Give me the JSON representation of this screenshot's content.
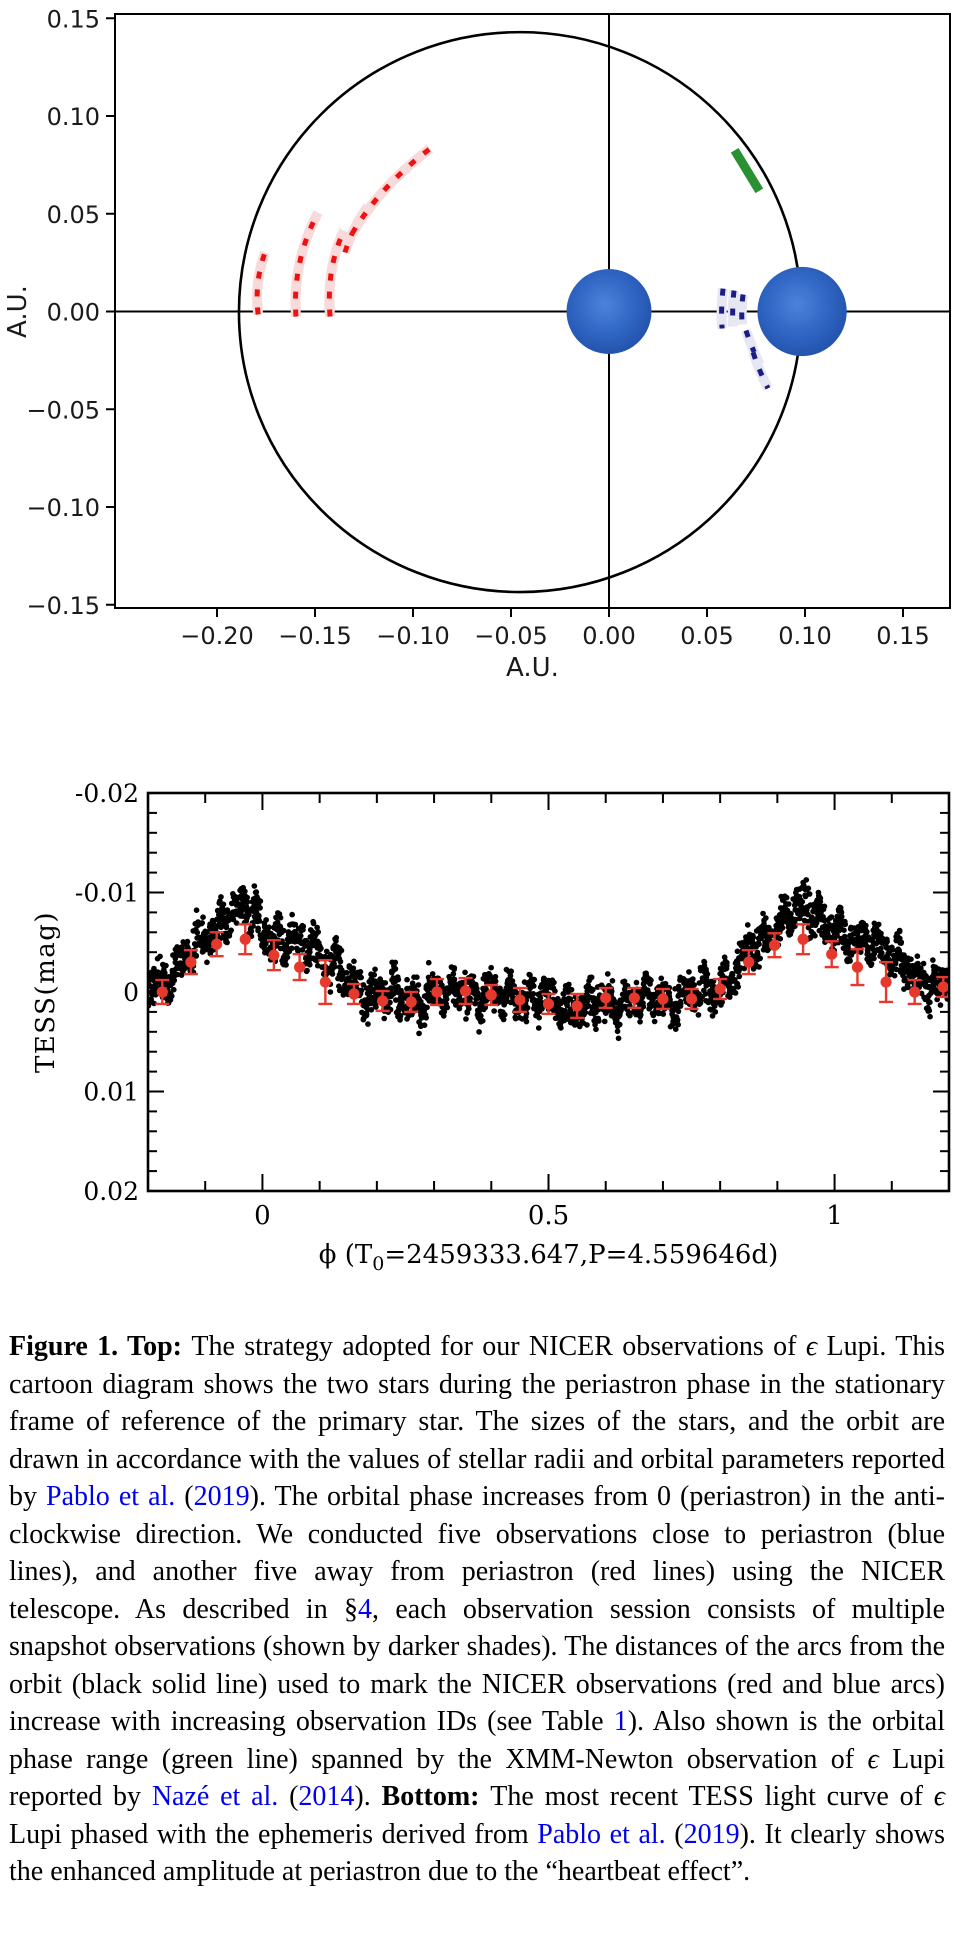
{
  "colors": {
    "link": "#0000EE",
    "frame": "#000000",
    "orbit": "#000000",
    "star_center": "#4e82da",
    "star_mid": "#3066c4",
    "star_edge": "#2151aa",
    "red_arc": "#ee1111",
    "red_band": "#f9dada",
    "blue_arc": "#1c1c87",
    "blue_band": "#e7e7f3",
    "green_segment": "#2a9132",
    "binned_point": "#e6392e",
    "scatter": "#000000"
  },
  "chart_data": [
    {
      "type": "scatter",
      "title": "NICER observation strategy cartoon: two stars of eps Lupi at periastron in primary rest frame",
      "xlabel": "A.U.",
      "ylabel": "A.U.",
      "xlim": [
        -0.2525,
        0.174
      ],
      "ylim": [
        -0.1522,
        0.1522
      ],
      "grid": false,
      "xticks": [
        -0.2,
        -0.15,
        -0.1,
        -0.05,
        0.0,
        0.05,
        0.1,
        0.15
      ],
      "xtick_labels": [
        "−0.20",
        "−0.15",
        "−0.10",
        "−0.05",
        "0.00",
        "0.05",
        "0.10",
        "0.15"
      ],
      "yticks": [
        0.15,
        0.1,
        0.05,
        0.0,
        -0.05,
        -0.1,
        -0.15
      ],
      "ytick_labels": [
        "0.15",
        "0.10",
        "0.05",
        "0.00",
        "−0.05",
        "−0.10",
        "−0.15"
      ],
      "axes_cross": [
        0,
        0
      ],
      "orbit_ellipse": {
        "cx": -0.0454,
        "cy": -0.0003,
        "rx": 0.1434,
        "ry": 0.1432
      },
      "stars": [
        {
          "name": "primary",
          "x": 0.0,
          "y": 0.0,
          "r": 0.0217
        },
        {
          "name": "secondary-at-periastron",
          "x": 0.0985,
          "y": 0.0,
          "r": 0.0228
        }
      ],
      "green_segment": {
        "x1": 0.0653,
        "y1": 0.0805,
        "x2": 0.0755,
        "y2": 0.0637,
        "meaning": "XMM-Newton observation phase range (Naze et al. 2014)"
      },
      "red_arcs": [
        [
          [
            -0.179,
            -0.0015
          ],
          [
            -0.181,
            0.0148
          ],
          [
            -0.1755,
            0.0302
          ]
        ],
        [
          [
            -0.1597,
            -0.0026
          ],
          [
            -0.1617,
            0.0251
          ],
          [
            -0.1485,
            0.0506
          ]
        ],
        [
          [
            -0.1423,
            -0.0026
          ],
          [
            -0.1444,
            0.022
          ],
          [
            -0.1352,
            0.0414
          ]
        ],
        [
          [
            -0.1347,
            0.0302
          ],
          [
            -0.1311,
            0.0424
          ],
          [
            -0.123,
            0.0537
          ]
        ],
        [
          [
            -0.1311,
            0.0398
          ],
          [
            -0.1168,
            0.064
          ],
          [
            -0.0913,
            0.0833
          ]
        ]
      ],
      "blue_arcs": [
        [
          [
            0.0582,
            0.0117
          ],
          [
            0.057,
            0.0015
          ],
          [
            0.0577,
            -0.0087
          ]
        ],
        [
          [
            0.0638,
            0.0107
          ],
          [
            0.0627,
            0.0015
          ],
          [
            0.0633,
            -0.0077
          ]
        ],
        [
          [
            0.0684,
            0.0087
          ],
          [
            0.0674,
            0.0011
          ],
          [
            0.0679,
            -0.0066
          ]
        ],
        [
          [
            0.0699,
            -0.0097
          ],
          [
            0.0727,
            -0.0184
          ],
          [
            0.077,
            -0.0271
          ]
        ],
        [
          [
            0.0735,
            -0.0209
          ],
          [
            0.0765,
            -0.0301
          ],
          [
            0.0811,
            -0.0393
          ]
        ]
      ]
    },
    {
      "type": "scatter",
      "title": "TESS light curve of eps Lupi phased on Pablo et al. (2019) ephemeris (heartbeat effect)",
      "ylabel": "TESS(mag)",
      "xlabel_parts": {
        "prefix": "ϕ (T",
        "sub": "0",
        "suffix": "=2459333.647,P=4.559646d)"
      },
      "xlim": [
        -0.2,
        1.2
      ],
      "ylim": [
        -0.02,
        0.02
      ],
      "y_axis_inverted": true,
      "xticks": [
        0,
        0.5,
        1
      ],
      "xtick_labels": [
        "0",
        "0.5",
        "1"
      ],
      "x_minor_step": 0.1,
      "yticks": [
        -0.02,
        -0.01,
        0,
        0.01,
        0.02
      ],
      "ytick_labels": [
        "-0.02",
        "-0.01",
        "0",
        "0.01",
        "0.02"
      ],
      "y_minor_step": 0.002,
      "band_halfwidth": 0.00145,
      "band_centerline": [
        [
          -0.2,
          -0.0008
        ],
        [
          -0.17,
          -0.0012
        ],
        [
          -0.14,
          -0.0028
        ],
        [
          -0.11,
          -0.0048
        ],
        [
          -0.08,
          -0.0066
        ],
        [
          -0.06,
          -0.0078
        ],
        [
          -0.04,
          -0.0084
        ],
        [
          -0.02,
          -0.008
        ],
        [
          0.0,
          -0.0066
        ],
        [
          0.02,
          -0.0052
        ],
        [
          0.045,
          -0.0044
        ],
        [
          0.07,
          -0.005
        ],
        [
          0.09,
          -0.0046
        ],
        [
          0.11,
          -0.0036
        ],
        [
          0.13,
          -0.0022
        ],
        [
          0.15,
          -0.001
        ],
        [
          0.17,
          -0.0003
        ],
        [
          0.2,
          0.0002
        ],
        [
          0.23,
          0.0006
        ],
        [
          0.26,
          0.0008
        ],
        [
          0.29,
          0.0002
        ],
        [
          0.32,
          0.0004
        ],
        [
          0.35,
          -0.0004
        ],
        [
          0.38,
          0.0002
        ],
        [
          0.41,
          0.0004
        ],
        [
          0.44,
          0.0002
        ],
        [
          0.47,
          0.0008
        ],
        [
          0.5,
          0.001
        ],
        [
          0.53,
          0.0013
        ],
        [
          0.56,
          0.0012
        ],
        [
          0.59,
          0.0014
        ],
        [
          0.62,
          0.001
        ],
        [
          0.65,
          0.0008
        ],
        [
          0.68,
          0.0008
        ],
        [
          0.71,
          0.0006
        ],
        [
          0.74,
          0.0006
        ],
        [
          0.77,
          0.0001
        ],
        [
          0.8,
          -0.0008
        ],
        [
          0.83,
          -0.0024
        ],
        [
          0.86,
          -0.0044
        ],
        [
          0.89,
          -0.0064
        ],
        [
          0.92,
          -0.0078
        ],
        [
          0.945,
          -0.0084
        ],
        [
          0.97,
          -0.008
        ],
        [
          1.0,
          -0.0062
        ],
        [
          1.03,
          -0.0048
        ],
        [
          1.06,
          -0.0052
        ],
        [
          1.09,
          -0.0042
        ],
        [
          1.12,
          -0.0026
        ],
        [
          1.15,
          -0.0012
        ],
        [
          1.18,
          -0.0006
        ],
        [
          1.2,
          -0.0008
        ]
      ],
      "binned_points": [
        {
          "x": -0.175,
          "y": 0.0,
          "err": 0.0012
        },
        {
          "x": -0.125,
          "y": -0.003,
          "err": 0.0012
        },
        {
          "x": -0.08,
          "y": -0.0048,
          "err": 0.0012
        },
        {
          "x": -0.03,
          "y": -0.0053,
          "err": 0.0015
        },
        {
          "x": 0.02,
          "y": -0.0037,
          "err": 0.0015
        },
        {
          "x": 0.065,
          "y": -0.0025,
          "err": 0.0013
        },
        {
          "x": 0.11,
          "y": -0.001,
          "err": 0.0022
        },
        {
          "x": 0.16,
          "y": 0.0002,
          "err": 0.001
        },
        {
          "x": 0.21,
          "y": 0.0009,
          "err": 0.001
        },
        {
          "x": 0.26,
          "y": 0.001,
          "err": 0.001
        },
        {
          "x": 0.305,
          "y": 0.0,
          "err": 0.0013
        },
        {
          "x": 0.355,
          "y": -0.0001,
          "err": 0.0013
        },
        {
          "x": 0.4,
          "y": 0.0003,
          "err": 0.001
        },
        {
          "x": 0.45,
          "y": 0.0008,
          "err": 0.0012
        },
        {
          "x": 0.5,
          "y": 0.0012,
          "err": 0.001
        },
        {
          "x": 0.55,
          "y": 0.0014,
          "err": 0.0012
        },
        {
          "x": 0.6,
          "y": 0.0006,
          "err": 0.001
        },
        {
          "x": 0.65,
          "y": 0.0006,
          "err": 0.001
        },
        {
          "x": 0.7,
          "y": 0.0007,
          "err": 0.001
        },
        {
          "x": 0.75,
          "y": 0.0007,
          "err": 0.001
        },
        {
          "x": 0.8,
          "y": -0.0003,
          "err": 0.001
        },
        {
          "x": 0.85,
          "y": -0.003,
          "err": 0.0012
        },
        {
          "x": 0.895,
          "y": -0.0047,
          "err": 0.0012
        },
        {
          "x": 0.945,
          "y": -0.0053,
          "err": 0.0015
        },
        {
          "x": 0.995,
          "y": -0.0038,
          "err": 0.0013
        },
        {
          "x": 1.04,
          "y": -0.0025,
          "err": 0.0018
        },
        {
          "x": 1.09,
          "y": -0.001,
          "err": 0.002
        },
        {
          "x": 1.14,
          "y": 0.0,
          "err": 0.0012
        },
        {
          "x": 1.19,
          "y": -0.0005,
          "err": 0.001
        }
      ]
    }
  ],
  "caption": {
    "segments": [
      {
        "t": "Figure 1. Top: ",
        "b": true
      },
      {
        "t": "The strategy adopted for our NICER observations of "
      },
      {
        "t": "ϵ",
        "i": true
      },
      {
        "t": " Lupi. This cartoon diagram shows the two stars during the periastron phase in the stationary frame of reference of the primary star. The sizes of the stars, and the orbit are drawn in accordance with the values of stellar radii and orbital parameters reported by "
      },
      {
        "t": "Pablo et al.",
        "link": true
      },
      {
        "t": " ("
      },
      {
        "t": "2019",
        "link": true
      },
      {
        "t": "). The orbital phase increases from 0 (periastron) in the anti-clockwise direction. We conducted five observations close to periastron (blue lines), and another five away from periastron (red lines) using the NICER telescope. As described in §"
      },
      {
        "t": "4",
        "link": true
      },
      {
        "t": ", each observation session consists of multiple snapshot observations (shown by darker shades). The distances of the arcs from the orbit (black solid line) used to mark the NICER observations (red and blue arcs) increase with increasing observation IDs (see Table "
      },
      {
        "t": "1",
        "link": true
      },
      {
        "t": "). Also shown is the orbital phase range (green line) spanned by the XMM-Newton observation of "
      },
      {
        "t": "ϵ",
        "i": true
      },
      {
        "t": " Lupi reported by "
      },
      {
        "t": "Nazé et al.",
        "link": true
      },
      {
        "t": " ("
      },
      {
        "t": "2014",
        "link": true
      },
      {
        "t": "). "
      },
      {
        "t": "Bottom: ",
        "b": true
      },
      {
        "t": "The most recent TESS light curve of "
      },
      {
        "t": "ϵ",
        "i": true
      },
      {
        "t": " Lupi phased with the ephemeris derived from "
      },
      {
        "t": "Pablo et al.",
        "link": true
      },
      {
        "t": " ("
      },
      {
        "t": "2019",
        "link": true
      },
      {
        "t": "). It clearly shows the enhanced amplitude at periastron due to the “heartbeat effect”."
      }
    ]
  }
}
